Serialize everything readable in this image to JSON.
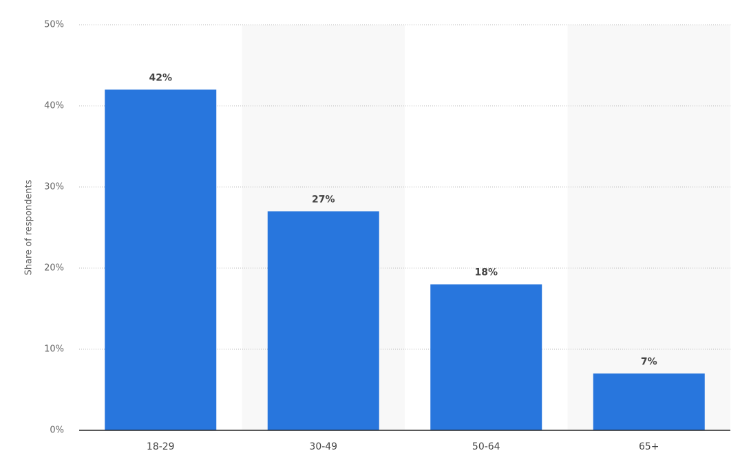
{
  "chart_data": {
    "type": "bar",
    "y_label": "Share of respondents",
    "categories": [
      "18-29",
      "30-49",
      "50-64",
      "65+"
    ],
    "values": [
      42,
      27,
      18,
      7
    ],
    "value_labels": [
      "42%",
      "27%",
      "18%",
      "7%"
    ],
    "color": "#2876dd",
    "ylim": [
      0,
      50
    ],
    "yticks": [
      {
        "value": 0,
        "label": "0%"
      },
      {
        "value": 10,
        "label": "10%"
      },
      {
        "value": 20,
        "label": "20%"
      },
      {
        "value": 30,
        "label": "30%"
      },
      {
        "value": 40,
        "label": "40%"
      },
      {
        "value": 50,
        "label": "50%"
      }
    ],
    "grid": true
  }
}
